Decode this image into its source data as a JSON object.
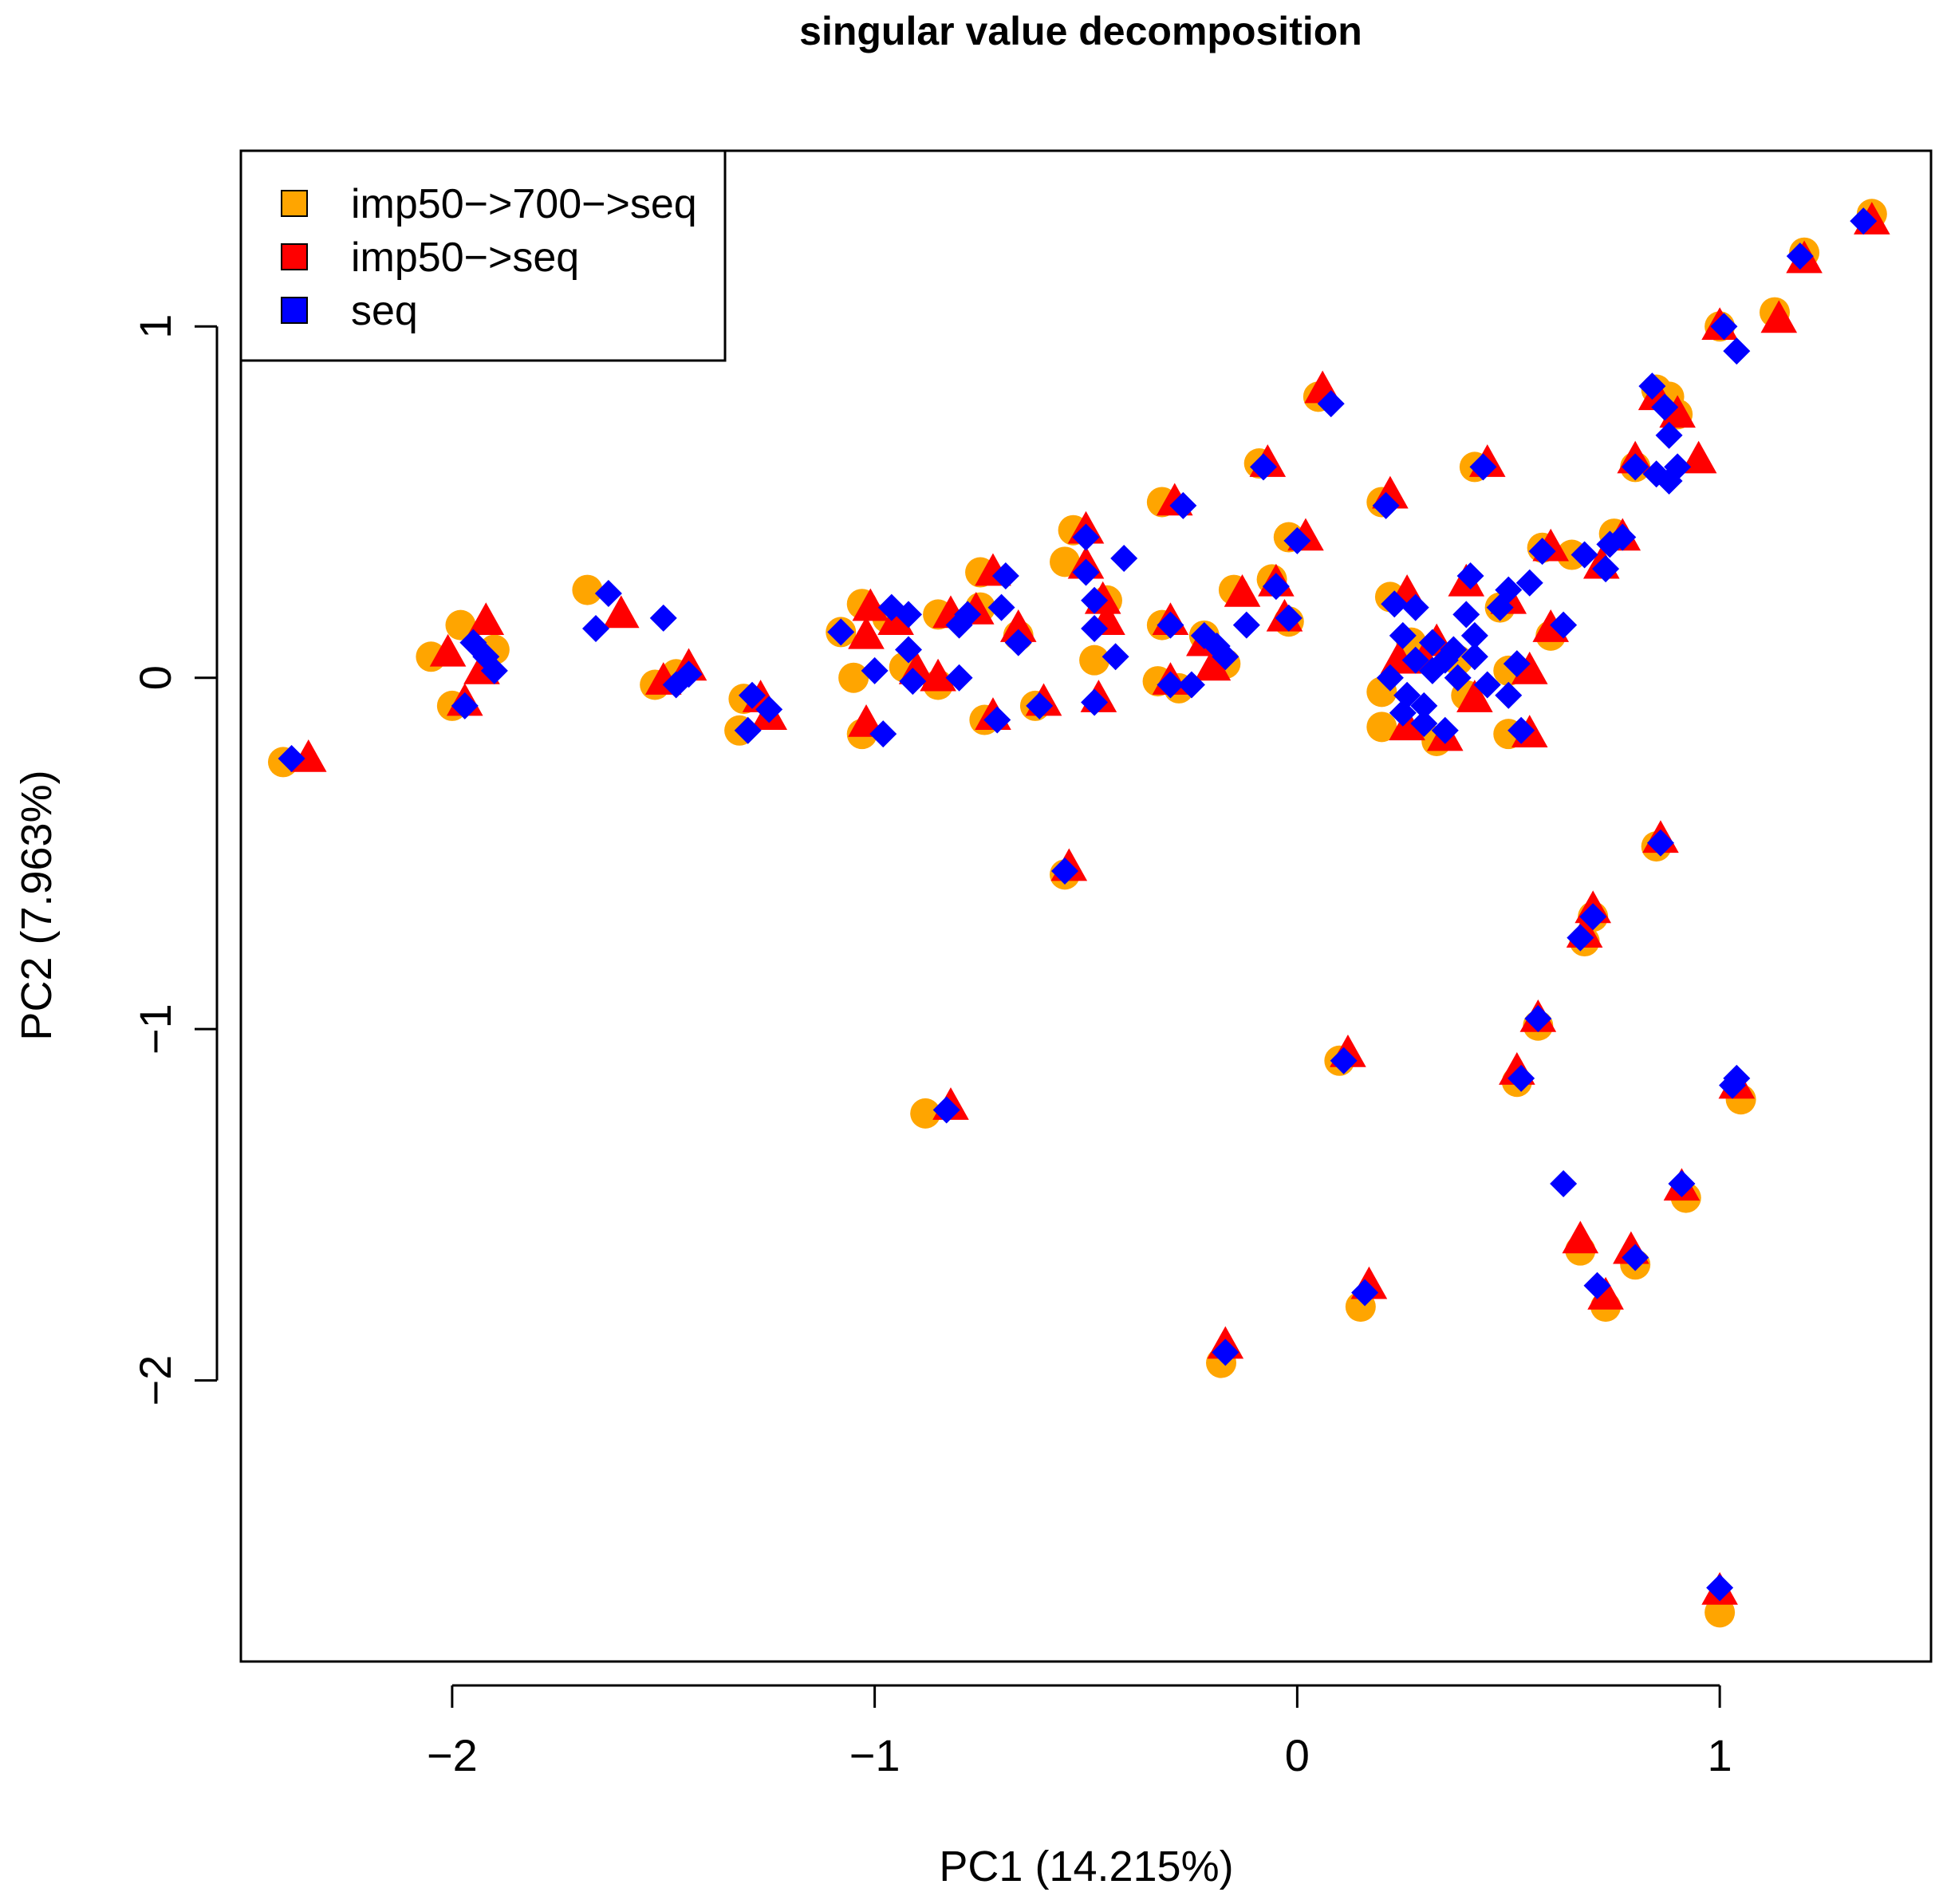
{
  "chart_data": {
    "type": "scatter",
    "title": "singular value decomposition",
    "xlabel": "PC1 (14.215%)",
    "ylabel": "PC2 (7.963%)",
    "xlim": [
      -2.5,
      1.5
    ],
    "ylim": [
      -2.8,
      1.5
    ],
    "xticks": [
      -2,
      -1,
      0,
      1
    ],
    "xtick_labels": [
      "−2",
      "−1",
      "0",
      "1"
    ],
    "yticks": [
      -2,
      -1,
      0,
      1
    ],
    "ytick_labels": [
      "−2",
      "−1",
      "0",
      "1"
    ],
    "grid": false,
    "legend_position": "top-left",
    "series": [
      {
        "name": "imp50−>700−>seq",
        "color": "#FFA500",
        "marker": "circle",
        "points": [
          [
            -2.4,
            -0.24
          ],
          [
            -2.05,
            0.06
          ],
          [
            -1.98,
            0.15
          ],
          [
            -2.0,
            -0.08
          ],
          [
            -1.9,
            0.08
          ],
          [
            -1.68,
            0.25
          ],
          [
            -1.52,
            -0.02
          ],
          [
            -1.47,
            0.01
          ],
          [
            -1.31,
            -0.06
          ],
          [
            -1.32,
            -0.15
          ],
          [
            -1.08,
            0.13
          ],
          [
            -1.03,
            0.21
          ],
          [
            -1.05,
            0.0
          ],
          [
            -1.03,
            -0.16
          ],
          [
            -0.97,
            0.17
          ],
          [
            -0.93,
            0.03
          ],
          [
            -0.85,
            0.18
          ],
          [
            -0.75,
            0.3
          ],
          [
            -0.74,
            -0.12
          ],
          [
            -0.66,
            0.12
          ],
          [
            -0.62,
            -0.08
          ],
          [
            -0.55,
            0.33
          ],
          [
            -0.53,
            0.42
          ],
          [
            -0.48,
            0.05
          ],
          [
            -0.32,
            0.15
          ],
          [
            -0.32,
            0.5
          ],
          [
            -0.33,
            -0.01
          ],
          [
            -0.28,
            -0.03
          ],
          [
            -0.22,
            0.12
          ],
          [
            -0.17,
            0.04
          ],
          [
            -0.09,
            0.61
          ],
          [
            -0.06,
            0.28
          ],
          [
            -0.02,
            0.4
          ],
          [
            -0.02,
            0.16
          ],
          [
            0.05,
            0.8
          ],
          [
            0.2,
            0.5
          ],
          [
            0.22,
            0.23
          ],
          [
            0.2,
            -0.04
          ],
          [
            0.2,
            -0.14
          ],
          [
            0.27,
            0.1
          ],
          [
            0.33,
            -0.18
          ],
          [
            0.38,
            0.05
          ],
          [
            0.42,
            0.6
          ],
          [
            0.48,
            0.2
          ],
          [
            0.5,
            0.02
          ],
          [
            0.5,
            -0.16
          ],
          [
            0.58,
            0.37
          ],
          [
            0.65,
            0.35
          ],
          [
            0.75,
            0.41
          ],
          [
            0.85,
            0.82
          ],
          [
            0.88,
            0.8
          ],
          [
            0.9,
            0.75
          ],
          [
            0.8,
            0.6
          ],
          [
            1.0,
            1.0
          ],
          [
            1.13,
            1.04
          ],
          [
            1.2,
            1.21
          ],
          [
            1.36,
            1.32
          ],
          [
            -0.55,
            -0.56
          ],
          [
            -0.88,
            -1.24
          ],
          [
            0.85,
            -0.48
          ],
          [
            0.68,
            -0.75
          ],
          [
            0.7,
            -0.68
          ],
          [
            0.57,
            -0.99
          ],
          [
            0.52,
            -1.15
          ],
          [
            0.1,
            -1.09
          ],
          [
            1.05,
            -1.2
          ],
          [
            0.92,
            -1.48
          ],
          [
            0.67,
            -1.63
          ],
          [
            0.8,
            -1.67
          ],
          [
            0.73,
            -1.79
          ],
          [
            0.15,
            -1.79
          ],
          [
            -0.18,
            -1.95
          ],
          [
            1.0,
            -2.66
          ],
          [
            -0.85,
            -0.02
          ],
          [
            -0.75,
            0.2
          ],
          [
            -0.45,
            0.22
          ],
          [
            -0.15,
            0.25
          ],
          [
            0.6,
            0.12
          ],
          [
            0.4,
            -0.05
          ]
        ]
      },
      {
        "name": "imp50−>seq",
        "color": "#FF0000",
        "marker": "triangle",
        "points": [
          [
            -2.34,
            -0.23
          ],
          [
            -2.01,
            0.07
          ],
          [
            -1.92,
            0.16
          ],
          [
            -1.97,
            -0.07
          ],
          [
            -1.93,
            0.02
          ],
          [
            -1.6,
            0.18
          ],
          [
            -1.5,
            -0.01
          ],
          [
            -1.44,
            0.03
          ],
          [
            -1.27,
            -0.06
          ],
          [
            -1.25,
            -0.11
          ],
          [
            -1.02,
            0.12
          ],
          [
            -1.01,
            0.2
          ],
          [
            -1.02,
            -0.13
          ],
          [
            -0.95,
            0.16
          ],
          [
            -0.9,
            0.02
          ],
          [
            -0.82,
            0.18
          ],
          [
            -0.72,
            0.3
          ],
          [
            -0.72,
            -0.11
          ],
          [
            -0.66,
            0.14
          ],
          [
            -0.6,
            -0.07
          ],
          [
            -0.5,
            0.42
          ],
          [
            -0.5,
            0.32
          ],
          [
            -0.47,
            -0.06
          ],
          [
            -0.45,
            0.16
          ],
          [
            -0.29,
            0.5
          ],
          [
            -0.3,
            0.16
          ],
          [
            -0.3,
            -0.01
          ],
          [
            -0.22,
            0.1
          ],
          [
            -0.2,
            0.03
          ],
          [
            -0.07,
            0.61
          ],
          [
            -0.05,
            0.27
          ],
          [
            0.02,
            0.4
          ],
          [
            -0.03,
            0.17
          ],
          [
            0.06,
            0.82
          ],
          [
            0.22,
            0.52
          ],
          [
            0.26,
            0.24
          ],
          [
            0.24,
            0.05
          ],
          [
            0.26,
            -0.14
          ],
          [
            0.35,
            -0.17
          ],
          [
            0.33,
            0.1
          ],
          [
            0.45,
            0.61
          ],
          [
            0.5,
            0.22
          ],
          [
            0.55,
            0.02
          ],
          [
            0.55,
            -0.16
          ],
          [
            0.6,
            0.37
          ],
          [
            0.72,
            0.32
          ],
          [
            0.77,
            0.4
          ],
          [
            0.85,
            0.8
          ],
          [
            0.9,
            0.75
          ],
          [
            0.95,
            0.62
          ],
          [
            0.8,
            0.62
          ],
          [
            1.0,
            1.0
          ],
          [
            1.14,
            1.02
          ],
          [
            1.2,
            1.19
          ],
          [
            1.36,
            1.3
          ],
          [
            -0.54,
            -0.54
          ],
          [
            -0.82,
            -1.22
          ],
          [
            0.86,
            -0.46
          ],
          [
            0.7,
            -0.66
          ],
          [
            0.68,
            -0.73
          ],
          [
            0.57,
            -0.97
          ],
          [
            0.52,
            -1.12
          ],
          [
            0.12,
            -1.07
          ],
          [
            1.04,
            -1.16
          ],
          [
            0.91,
            -1.45
          ],
          [
            0.67,
            -1.6
          ],
          [
            0.79,
            -1.63
          ],
          [
            0.73,
            -1.76
          ],
          [
            0.17,
            -1.73
          ],
          [
            -0.17,
            -1.9
          ],
          [
            1.0,
            -2.6
          ],
          [
            -0.85,
            0.0
          ],
          [
            -0.76,
            0.19
          ],
          [
            -0.46,
            0.22
          ],
          [
            -0.13,
            0.24
          ],
          [
            0.6,
            0.14
          ],
          [
            0.42,
            -0.06
          ],
          [
            0.3,
            0.05
          ],
          [
            0.4,
            0.27
          ]
        ]
      },
      {
        "name": "seq",
        "color": "#0000FF",
        "marker": "diamond",
        "points": [
          [
            -2.38,
            -0.23
          ],
          [
            -1.95,
            0.1
          ],
          [
            -1.92,
            0.06
          ],
          [
            -1.9,
            0.02
          ],
          [
            -1.97,
            -0.08
          ],
          [
            -1.66,
            0.14
          ],
          [
            -1.63,
            0.24
          ],
          [
            -1.5,
            0.17
          ],
          [
            -1.47,
            -0.02
          ],
          [
            -1.44,
            0.01
          ],
          [
            -1.29,
            -0.05
          ],
          [
            -1.3,
            -0.15
          ],
          [
            -1.25,
            -0.09
          ],
          [
            -1.08,
            0.13
          ],
          [
            -1.0,
            0.02
          ],
          [
            -0.98,
            -0.16
          ],
          [
            -0.96,
            0.2
          ],
          [
            -0.92,
            0.18
          ],
          [
            -0.92,
            0.08
          ],
          [
            -0.91,
            -0.01
          ],
          [
            -0.8,
            0.0
          ],
          [
            -0.8,
            0.15
          ],
          [
            -0.78,
            0.18
          ],
          [
            -0.7,
            0.2
          ],
          [
            -0.69,
            0.29
          ],
          [
            -0.71,
            -0.12
          ],
          [
            -0.66,
            0.1
          ],
          [
            -0.61,
            -0.08
          ],
          [
            -0.55,
            -0.55
          ],
          [
            -0.5,
            0.4
          ],
          [
            -0.5,
            0.3
          ],
          [
            -0.48,
            0.22
          ],
          [
            -0.48,
            0.14
          ],
          [
            -0.48,
            -0.07
          ],
          [
            -0.43,
            0.06
          ],
          [
            -0.41,
            0.34
          ],
          [
            -0.3,
            0.15
          ],
          [
            -0.27,
            0.49
          ],
          [
            -0.3,
            -0.02
          ],
          [
            -0.25,
            -0.02
          ],
          [
            -0.22,
            0.12
          ],
          [
            -0.19,
            0.09
          ],
          [
            -0.17,
            0.06
          ],
          [
            -0.12,
            0.15
          ],
          [
            -0.08,
            0.6
          ],
          [
            -0.05,
            0.26
          ],
          [
            0.0,
            0.39
          ],
          [
            -0.02,
            0.17
          ],
          [
            0.08,
            0.78
          ],
          [
            0.21,
            0.49
          ],
          [
            0.23,
            0.21
          ],
          [
            0.25,
            0.12
          ],
          [
            0.22,
            0.0
          ],
          [
            0.25,
            -0.1
          ],
          [
            0.28,
            0.05
          ],
          [
            0.3,
            -0.13
          ],
          [
            0.32,
            0.02
          ],
          [
            0.35,
            -0.15
          ],
          [
            0.37,
            0.08
          ],
          [
            0.4,
            0.18
          ],
          [
            0.42,
            0.06
          ],
          [
            0.45,
            -0.02
          ],
          [
            0.41,
            0.29
          ],
          [
            0.44,
            0.6
          ],
          [
            0.48,
            0.2
          ],
          [
            0.5,
            0.25
          ],
          [
            0.52,
            0.04
          ],
          [
            0.5,
            -0.05
          ],
          [
            0.53,
            -0.15
          ],
          [
            0.55,
            0.27
          ],
          [
            0.58,
            0.36
          ],
          [
            0.63,
            0.15
          ],
          [
            0.68,
            0.35
          ],
          [
            0.73,
            0.31
          ],
          [
            0.74,
            0.38
          ],
          [
            0.77,
            0.4
          ],
          [
            0.8,
            0.6
          ],
          [
            0.84,
            0.83
          ],
          [
            0.87,
            0.77
          ],
          [
            0.88,
            0.69
          ],
          [
            0.88,
            0.56
          ],
          [
            0.9,
            0.6
          ],
          [
            0.85,
            0.58
          ],
          [
            1.01,
            1.0
          ],
          [
            1.04,
            0.93
          ],
          [
            1.19,
            1.2
          ],
          [
            1.34,
            1.3
          ],
          [
            -0.83,
            -1.23
          ],
          [
            0.86,
            -0.47
          ],
          [
            0.7,
            -0.68
          ],
          [
            0.67,
            -0.74
          ],
          [
            0.57,
            -0.97
          ],
          [
            0.53,
            -1.14
          ],
          [
            0.11,
            -1.09
          ],
          [
            1.03,
            -1.16
          ],
          [
            1.04,
            -1.14
          ],
          [
            0.91,
            -1.44
          ],
          [
            0.63,
            -1.44
          ],
          [
            0.71,
            -1.73
          ],
          [
            0.8,
            -1.65
          ],
          [
            0.16,
            -1.75
          ],
          [
            -0.17,
            -1.92
          ],
          [
            1.0,
            -2.59
          ],
          [
            0.28,
            0.2
          ],
          [
            0.38,
            0.0
          ],
          [
            0.32,
            0.1
          ],
          [
            0.26,
            -0.05
          ],
          [
            0.42,
            0.12
          ],
          [
            0.3,
            -0.08
          ],
          [
            0.35,
            0.05
          ]
        ]
      }
    ]
  }
}
